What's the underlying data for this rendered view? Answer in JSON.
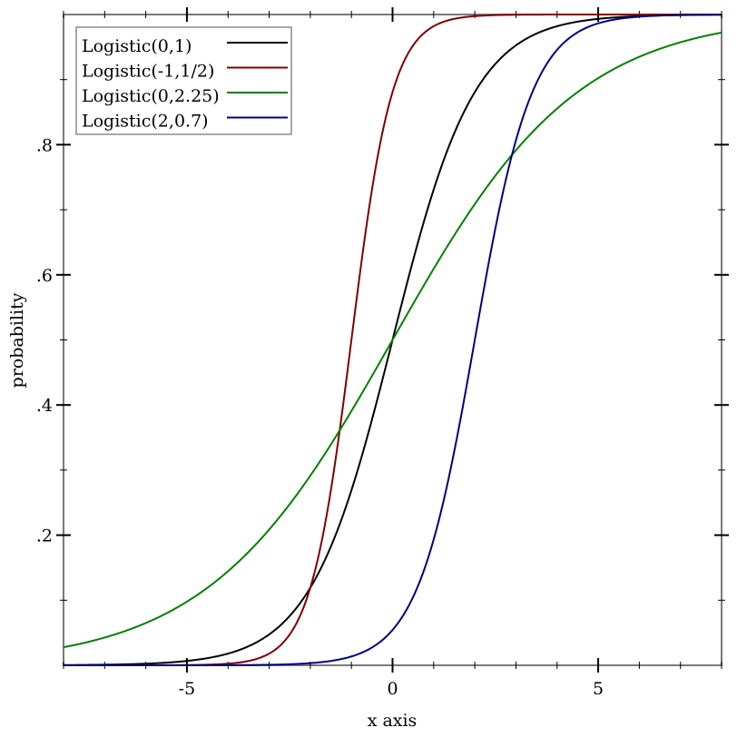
{
  "chart_data": {
    "type": "line",
    "title": "",
    "xlabel": "x axis",
    "ylabel": "probability",
    "xlim": [
      -8,
      8
    ],
    "ylim": [
      0,
      1
    ],
    "x_ticks": [
      -5,
      0,
      5
    ],
    "x_tick_labels": [
      "-5",
      "0",
      "5"
    ],
    "x_minor_step": 1,
    "y_ticks": [
      0.2,
      0.4,
      0.6,
      0.8
    ],
    "y_tick_labels": [
      ".2",
      ".4",
      ".6",
      ".8"
    ],
    "y_minor_step": 0.1,
    "grid": false,
    "legend_placement": "top-left",
    "function": "logistic CDF 1/(1+exp(-(x-mean)/scale))",
    "series": [
      {
        "name": "Logistic(0,1)",
        "mean": 0,
        "scale": 1,
        "color": "#000000"
      },
      {
        "name": "Logistic(-1,1/2)",
        "mean": -1,
        "scale": 0.5,
        "color": "#800000"
      },
      {
        "name": "Logistic(0,2.25)",
        "mean": 0,
        "scale": 2.25,
        "color": "#008000"
      },
      {
        "name": "Logistic(2,0.7)",
        "mean": 2,
        "scale": 0.7,
        "color": "#000080"
      }
    ]
  }
}
